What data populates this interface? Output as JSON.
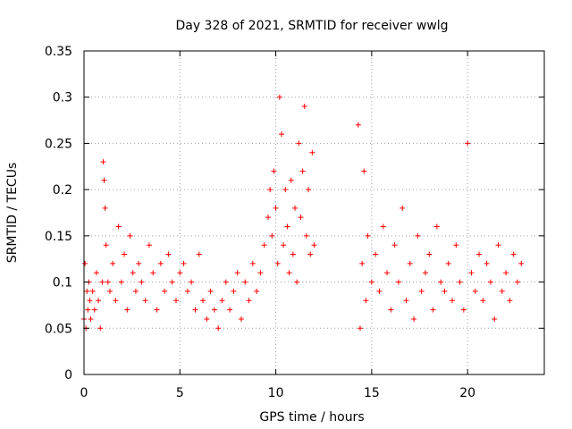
{
  "chart_data": {
    "type": "scatter",
    "title": "Day 328 of 2021, SRMTID for receiver wwlg",
    "xlabel": "GPS time / hours",
    "ylabel": "SRMTID / TECUs",
    "xlim": [
      0,
      24
    ],
    "ylim": [
      0,
      0.35
    ],
    "xticks": [
      0,
      5,
      10,
      15,
      20
    ],
    "xtick_labels": [
      "0",
      "5",
      "10",
      "15",
      "20"
    ],
    "yticks": [
      0,
      0.05,
      0.1,
      0.15,
      0.2,
      0.25,
      0.3,
      0.35
    ],
    "ytick_labels": [
      "0",
      "0.05",
      "0.1",
      "0.15",
      "0.2",
      "0.25",
      "0.3",
      "0.35"
    ],
    "grid": true,
    "marker": "+",
    "color": "#ff0000",
    "series": [
      {
        "name": "SRMTID",
        "x": [
          0.0,
          0.05,
          0.1,
          0.15,
          0.2,
          0.25,
          0.3,
          0.35,
          0.45,
          0.55,
          0.65,
          0.75,
          0.85,
          0.95,
          1.0,
          1.05,
          1.1,
          1.15,
          1.25,
          1.35,
          1.5,
          1.65,
          1.8,
          1.95,
          2.1,
          2.25,
          2.4,
          2.55,
          2.7,
          2.85,
          3.0,
          3.2,
          3.4,
          3.6,
          3.8,
          4.0,
          4.2,
          4.4,
          4.6,
          4.8,
          5.0,
          5.2,
          5.4,
          5.6,
          5.8,
          6.0,
          6.2,
          6.4,
          6.6,
          6.8,
          7.0,
          7.2,
          7.4,
          7.6,
          7.8,
          8.0,
          8.2,
          8.4,
          8.6,
          8.8,
          9.0,
          9.2,
          9.4,
          9.6,
          9.7,
          9.8,
          9.9,
          10.0,
          10.1,
          10.2,
          10.3,
          10.4,
          10.5,
          10.6,
          10.7,
          10.8,
          10.9,
          11.0,
          11.1,
          11.2,
          11.3,
          11.4,
          11.5,
          11.6,
          11.7,
          11.8,
          11.9,
          12.0,
          14.3,
          14.4,
          14.5,
          14.6,
          14.7,
          14.8,
          15.0,
          15.2,
          15.4,
          15.6,
          15.8,
          16.0,
          16.2,
          16.4,
          16.6,
          16.8,
          17.0,
          17.2,
          17.4,
          17.6,
          17.8,
          18.0,
          18.2,
          18.4,
          18.6,
          18.8,
          19.0,
          19.2,
          19.4,
          19.6,
          19.8,
          20.0,
          20.2,
          20.4,
          20.6,
          20.8,
          21.0,
          21.2,
          21.4,
          21.6,
          21.8,
          22.0,
          22.2,
          22.4,
          22.6,
          22.8
        ],
        "y": [
          0.06,
          0.12,
          0.05,
          0.09,
          0.07,
          0.1,
          0.08,
          0.06,
          0.09,
          0.07,
          0.11,
          0.08,
          0.05,
          0.1,
          0.23,
          0.21,
          0.18,
          0.14,
          0.1,
          0.09,
          0.12,
          0.08,
          0.16,
          0.1,
          0.13,
          0.07,
          0.15,
          0.11,
          0.09,
          0.12,
          0.1,
          0.08,
          0.14,
          0.11,
          0.07,
          0.12,
          0.09,
          0.13,
          0.1,
          0.08,
          0.11,
          0.12,
          0.09,
          0.1,
          0.07,
          0.13,
          0.08,
          0.06,
          0.09,
          0.07,
          0.05,
          0.08,
          0.1,
          0.07,
          0.09,
          0.11,
          0.06,
          0.1,
          0.08,
          0.12,
          0.09,
          0.11,
          0.14,
          0.17,
          0.2,
          0.15,
          0.22,
          0.18,
          0.12,
          0.3,
          0.26,
          0.14,
          0.2,
          0.16,
          0.11,
          0.21,
          0.13,
          0.18,
          0.1,
          0.25,
          0.17,
          0.22,
          0.29,
          0.15,
          0.2,
          0.13,
          0.24,
          0.14,
          0.27,
          0.05,
          0.12,
          0.22,
          0.08,
          0.15,
          0.1,
          0.13,
          0.09,
          0.16,
          0.11,
          0.07,
          0.14,
          0.1,
          0.18,
          0.08,
          0.12,
          0.06,
          0.15,
          0.09,
          0.11,
          0.13,
          0.07,
          0.16,
          0.1,
          0.09,
          0.12,
          0.08,
          0.14,
          0.1,
          0.07,
          0.25,
          0.11,
          0.09,
          0.13,
          0.08,
          0.12,
          0.1,
          0.06,
          0.14,
          0.09,
          0.11,
          0.08,
          0.13,
          0.1,
          0.12
        ]
      }
    ]
  }
}
